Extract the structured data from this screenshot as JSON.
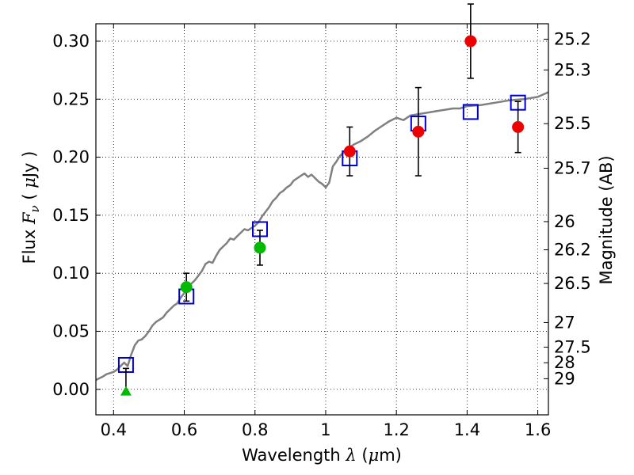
{
  "chart_data": {
    "type": "scatter",
    "xlabel": {
      "prefix": "Wavelength  ",
      "symbol": "λ",
      "unit_open": " (",
      "unit_mu": "μ",
      "unit_rest": "m)"
    },
    "ylabel": {
      "prefix": "Flux  ",
      "symbol": "F",
      "subscript": "ν",
      "unit": "  ( ",
      "unit_mu": "μ",
      "unit_rest": "Jy )"
    },
    "y2label": "Magnitude (AB)",
    "xlim": [
      0.35,
      1.63
    ],
    "ylim": [
      -0.022,
      0.315
    ],
    "x_ticks": [
      {
        "value": 0.4,
        "label": "0.4"
      },
      {
        "value": 0.6,
        "label": "0.6"
      },
      {
        "value": 0.8,
        "label": "0.8"
      },
      {
        "value": 1.0,
        "label": "1"
      },
      {
        "value": 1.2,
        "label": "1.2"
      },
      {
        "value": 1.4,
        "label": "1.4"
      },
      {
        "value": 1.6,
        "label": "1.6"
      }
    ],
    "y_ticks": [
      {
        "value": 0.0,
        "label": "0.00"
      },
      {
        "value": 0.05,
        "label": "0.05"
      },
      {
        "value": 0.1,
        "label": "0.10"
      },
      {
        "value": 0.15,
        "label": "0.15"
      },
      {
        "value": 0.2,
        "label": "0.20"
      },
      {
        "value": 0.25,
        "label": "0.25"
      },
      {
        "value": 0.3,
        "label": "0.30"
      }
    ],
    "magnitude_ticks": [
      {
        "flux": 0.3017,
        "label": "25.2"
      },
      {
        "flux": 0.2752,
        "label": "25.3"
      },
      {
        "flux": 0.2289,
        "label": "25.5"
      },
      {
        "flux": 0.1905,
        "label": "25.7"
      },
      {
        "flux": 0.1445,
        "label": "26"
      },
      {
        "flux": 0.1202,
        "label": "26.2"
      },
      {
        "flux": 0.0912,
        "label": "26.5"
      },
      {
        "flux": 0.0575,
        "label": "27"
      },
      {
        "flux": 0.0363,
        "label": "27.5"
      },
      {
        "flux": 0.0229,
        "label": "28"
      },
      {
        "flux": 0.0091,
        "label": "29"
      }
    ],
    "grid": true,
    "colors": {
      "model": "#808080",
      "model_points": "#0000cc",
      "green": "#00bb00",
      "red": "#ee0000",
      "errorbar": "#000000"
    },
    "model_spectrum": {
      "x": [
        0.35,
        0.37,
        0.38,
        0.4,
        0.41,
        0.42,
        0.43,
        0.44,
        0.45,
        0.46,
        0.47,
        0.48,
        0.49,
        0.5,
        0.51,
        0.52,
        0.53,
        0.54,
        0.55,
        0.56,
        0.57,
        0.58,
        0.59,
        0.6,
        0.61,
        0.62,
        0.63,
        0.64,
        0.65,
        0.66,
        0.67,
        0.68,
        0.69,
        0.7,
        0.71,
        0.72,
        0.73,
        0.74,
        0.75,
        0.76,
        0.77,
        0.78,
        0.79,
        0.8,
        0.81,
        0.82,
        0.83,
        0.84,
        0.85,
        0.86,
        0.87,
        0.88,
        0.89,
        0.9,
        0.91,
        0.92,
        0.93,
        0.94,
        0.95,
        0.96,
        0.97,
        0.98,
        0.99,
        1.0,
        1.01,
        1.02,
        1.03,
        1.04,
        1.06,
        1.08,
        1.1,
        1.12,
        1.14,
        1.16,
        1.18,
        1.2,
        1.22,
        1.24,
        1.26,
        1.28,
        1.3,
        1.32,
        1.34,
        1.36,
        1.38,
        1.4,
        1.44,
        1.48,
        1.52,
        1.56,
        1.6,
        1.63
      ],
      "y": [
        0.008,
        0.011,
        0.013,
        0.015,
        0.017,
        0.02,
        0.023,
        0.02,
        0.03,
        0.038,
        0.042,
        0.043,
        0.046,
        0.05,
        0.055,
        0.058,
        0.06,
        0.062,
        0.066,
        0.069,
        0.072,
        0.074,
        0.079,
        0.083,
        0.087,
        0.091,
        0.094,
        0.098,
        0.102,
        0.108,
        0.11,
        0.109,
        0.115,
        0.12,
        0.123,
        0.126,
        0.13,
        0.129,
        0.132,
        0.135,
        0.138,
        0.137,
        0.139,
        0.141,
        0.144,
        0.149,
        0.153,
        0.157,
        0.162,
        0.165,
        0.169,
        0.171,
        0.174,
        0.176,
        0.18,
        0.182,
        0.184,
        0.186,
        0.183,
        0.185,
        0.182,
        0.179,
        0.177,
        0.174,
        0.178,
        0.192,
        0.196,
        0.201,
        0.207,
        0.211,
        0.214,
        0.218,
        0.223,
        0.227,
        0.231,
        0.234,
        0.232,
        0.236,
        0.237,
        0.238,
        0.239,
        0.24,
        0.241,
        0.242,
        0.242,
        0.244,
        0.245,
        0.247,
        0.249,
        0.25,
        0.252,
        0.256
      ]
    },
    "series": [
      {
        "marker": "square",
        "points": [
          {
            "x": 0.435,
            "y": 0.021
          },
          {
            "x": 0.606,
            "y": 0.08
          },
          {
            "x": 0.814,
            "y": 0.138
          },
          {
            "x": 1.068,
            "y": 0.199
          },
          {
            "x": 1.262,
            "y": 0.229
          },
          {
            "x": 1.41,
            "y": 0.239
          },
          {
            "x": 1.544,
            "y": 0.247
          }
        ]
      },
      {
        "marker": "circle",
        "color_key": "green",
        "points": [
          {
            "x": 0.606,
            "y": 0.088,
            "err": 0.012
          },
          {
            "x": 0.814,
            "y": 0.122,
            "err": 0.015
          }
        ]
      },
      {
        "marker": "triangle",
        "color_key": "green",
        "points": [
          {
            "x": 0.435,
            "y": -0.002,
            "err_low": 0.0,
            "err_high": 0.02
          }
        ]
      },
      {
        "marker": "circle",
        "color_key": "red",
        "points": [
          {
            "x": 1.068,
            "y": 0.205,
            "err": 0.021
          },
          {
            "x": 1.262,
            "y": 0.222,
            "err": 0.038
          },
          {
            "x": 1.41,
            "y": 0.3,
            "err": 0.032
          },
          {
            "x": 1.544,
            "y": 0.226,
            "err": 0.022
          }
        ]
      }
    ]
  }
}
